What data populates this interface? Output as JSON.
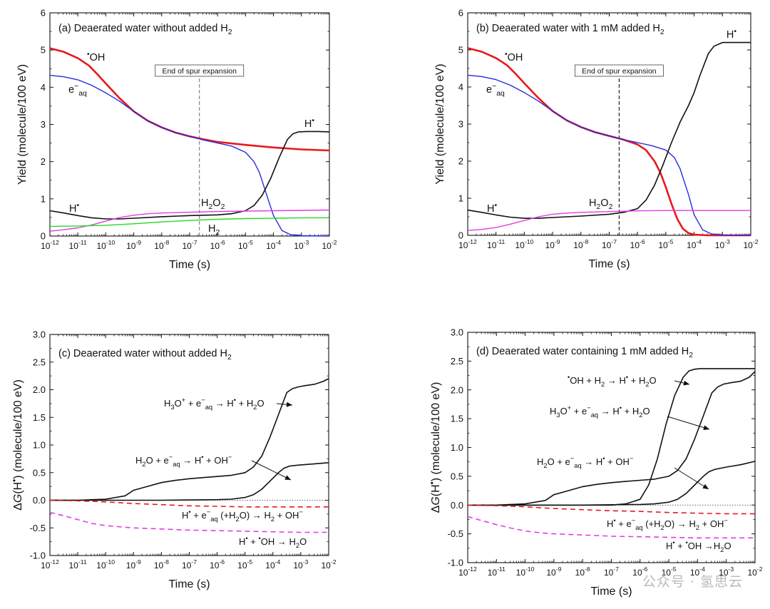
{
  "watermark": "公众号 · 氢思云",
  "colors": {
    "OH": "#e8191a",
    "eaq": "#2a2ae0",
    "H": "#111111",
    "H2O2": "#e23ce2",
    "H2": "#22dd22"
  },
  "chart_data": [
    {
      "id": "a",
      "type": "line",
      "title": "(a)  Deaerated water without added H₂",
      "xlabel": "Time (s)",
      "ylabel": "Yield (molecule/100 eV)",
      "xscale": "log",
      "xlim": [
        -12,
        -2
      ],
      "ylim": [
        0,
        6
      ],
      "yticks": [
        "0",
        "1",
        "2",
        "3",
        "4",
        "5",
        "6"
      ],
      "annotation_box": "End of spur expansion",
      "vline_x": -6.65,
      "series": [
        {
          "name": "•OH",
          "label_text": "OH",
          "color": "OH",
          "x": [
            -12,
            -11.5,
            -11,
            -10.6,
            -10.3,
            -10,
            -9.5,
            -9,
            -8.5,
            -8,
            -7.5,
            -7,
            -6.5,
            -6,
            -5,
            -4,
            -3,
            -2
          ],
          "y": [
            5.05,
            4.95,
            4.78,
            4.58,
            4.35,
            4.1,
            3.7,
            3.35,
            3.1,
            2.92,
            2.78,
            2.68,
            2.6,
            2.53,
            2.45,
            2.38,
            2.33,
            2.3
          ]
        },
        {
          "name": "e⁻aq",
          "label_text": "e",
          "color": "eaq",
          "x": [
            -12,
            -11.5,
            -11,
            -10.5,
            -10,
            -9.5,
            -9,
            -8.5,
            -8,
            -7.5,
            -7,
            -6.5,
            -6,
            -5.5,
            -5,
            -4.7,
            -4.5,
            -4.2,
            -4,
            -3.7,
            -3.4,
            -3,
            -2
          ],
          "y": [
            4.32,
            4.28,
            4.2,
            4.05,
            3.85,
            3.62,
            3.35,
            3.1,
            2.92,
            2.78,
            2.68,
            2.58,
            2.5,
            2.42,
            2.25,
            2.0,
            1.7,
            1.0,
            0.55,
            0.15,
            0.04,
            0.01,
            0.0
          ]
        },
        {
          "name": "H•",
          "label_text": "H",
          "color": "H",
          "x": [
            -12,
            -11.5,
            -11,
            -10.5,
            -10,
            -9.5,
            -9,
            -8,
            -7,
            -6,
            -5.5,
            -5,
            -4.7,
            -4.4,
            -4.1,
            -3.8,
            -3.5,
            -3.3,
            -3.1,
            -2.8,
            -2.4,
            -2
          ],
          "y": [
            0.68,
            0.62,
            0.55,
            0.49,
            0.46,
            0.46,
            0.48,
            0.52,
            0.55,
            0.57,
            0.6,
            0.68,
            0.82,
            1.1,
            1.55,
            2.1,
            2.6,
            2.75,
            2.8,
            2.81,
            2.81,
            2.8
          ]
        },
        {
          "name": "H₂O₂",
          "label_text": "H₂O₂",
          "color": "H2O2",
          "x": [
            -12,
            -11.5,
            -11,
            -10.5,
            -10,
            -9.5,
            -9,
            -8.5,
            -8,
            -7,
            -6,
            -5,
            -4,
            -3,
            -2
          ],
          "y": [
            0.13,
            0.17,
            0.22,
            0.3,
            0.4,
            0.5,
            0.56,
            0.6,
            0.62,
            0.64,
            0.66,
            0.67,
            0.68,
            0.69,
            0.7
          ]
        },
        {
          "name": "H₂",
          "label_text": "H₂",
          "color": "H2",
          "x": [
            -12,
            -11,
            -10,
            -9,
            -8,
            -7,
            -6,
            -5,
            -4,
            -3,
            -2
          ],
          "y": [
            0.26,
            0.27,
            0.29,
            0.33,
            0.38,
            0.42,
            0.45,
            0.47,
            0.48,
            0.49,
            0.49
          ]
        }
      ]
    },
    {
      "id": "b",
      "type": "line",
      "title": "(b)  Deaerated water with 1 mM added H₂",
      "xlabel": "Time (s)",
      "ylabel": "Yield (molecule/100 eV)",
      "xscale": "log",
      "xlim": [
        -12,
        -2
      ],
      "ylim": [
        0,
        6
      ],
      "yticks": [
        "0",
        "1",
        "2",
        "3",
        "4",
        "5",
        "6"
      ],
      "annotation_box": "End of spur expansion",
      "vline_x": -6.65,
      "series": [
        {
          "name": "•OH",
          "label_text": "OH",
          "color": "OH",
          "x": [
            -12,
            -11.5,
            -11,
            -10.6,
            -10.3,
            -10,
            -9.5,
            -9,
            -8.5,
            -8,
            -7.5,
            -7,
            -6.5,
            -6,
            -5.7,
            -5.4,
            -5.2,
            -5,
            -4.8,
            -4.6,
            -4.4,
            -4.2,
            -4,
            -3.5,
            -2
          ],
          "y": [
            5.05,
            4.95,
            4.78,
            4.58,
            4.35,
            4.1,
            3.7,
            3.35,
            3.1,
            2.92,
            2.78,
            2.68,
            2.58,
            2.45,
            2.3,
            2.0,
            1.7,
            1.3,
            0.85,
            0.45,
            0.18,
            0.06,
            0.02,
            0.0,
            0.0
          ]
        },
        {
          "name": "e⁻aq",
          "label_text": "e",
          "color": "eaq",
          "x": [
            -12,
            -11.5,
            -11,
            -10.5,
            -10,
            -9.5,
            -9,
            -8.5,
            -8,
            -7.5,
            -7,
            -6.5,
            -6,
            -5.5,
            -5,
            -4.7,
            -4.5,
            -4.2,
            -4,
            -3.7,
            -3.4,
            -3,
            -2
          ],
          "y": [
            4.32,
            4.28,
            4.2,
            4.05,
            3.85,
            3.62,
            3.35,
            3.1,
            2.92,
            2.78,
            2.68,
            2.58,
            2.5,
            2.42,
            2.3,
            2.1,
            1.8,
            1.1,
            0.55,
            0.15,
            0.04,
            0.01,
            0.0
          ]
        },
        {
          "name": "H•",
          "label_text": "H",
          "color": "H",
          "x": [
            -12,
            -11.5,
            -11,
            -10.5,
            -10,
            -9.5,
            -9,
            -8,
            -7,
            -6.5,
            -6,
            -5.7,
            -5.4,
            -5.1,
            -4.8,
            -4.5,
            -4.2,
            -4,
            -3.8,
            -3.5,
            -3.3,
            -3,
            -2.5,
            -2
          ],
          "y": [
            0.68,
            0.62,
            0.55,
            0.49,
            0.46,
            0.46,
            0.48,
            0.52,
            0.57,
            0.62,
            0.72,
            0.95,
            1.35,
            1.9,
            2.5,
            3.05,
            3.5,
            3.85,
            4.3,
            4.9,
            5.1,
            5.2,
            5.2,
            5.2
          ]
        },
        {
          "name": "H₂O₂",
          "label_text": "H₂O₂",
          "color": "H2O2",
          "x": [
            -12,
            -11.5,
            -11,
            -10.5,
            -10,
            -9.5,
            -9,
            -8.5,
            -8,
            -7,
            -6,
            -5,
            -4,
            -3,
            -2
          ],
          "y": [
            0.13,
            0.16,
            0.21,
            0.3,
            0.4,
            0.5,
            0.57,
            0.6,
            0.62,
            0.64,
            0.66,
            0.67,
            0.67,
            0.67,
            0.67
          ]
        }
      ]
    },
    {
      "id": "c",
      "type": "line",
      "title": "(c)  Deaerated water without added H₂",
      "xlabel": "Time (s)",
      "ylabel": "ΔG(H•) (molecule/100 eV)",
      "xscale": "log",
      "xlim": [
        -12,
        -2
      ],
      "ylim": [
        -1.0,
        3.0
      ],
      "yticks": [
        "-1.0",
        "-0.5",
        "0.0",
        "0.5",
        "1.0",
        "1.5",
        "2.0",
        "2.5",
        "3.0"
      ],
      "reactions": [
        {
          "text": "H₃O⁺ + e⁻aq → H• + H₂O",
          "reactant": "H₃O",
          "sup": "+",
          "e_sub": "aq",
          "product": "H• + H₂O"
        },
        {
          "text": "H₂O + e⁻aq → H• + OH⁻",
          "reactant": "H₂O",
          "sup": "",
          "e_sub": "aq",
          "product": "H• + OH⁻"
        },
        {
          "text": "H• + e⁻aq (+H₂O) → H₂ + OH⁻"
        },
        {
          "text": "H• + •OH → H₂O"
        }
      ],
      "series": [
        {
          "name": "H₃O⁺ + e⁻aq → H• + H₂O",
          "color": "H",
          "dash": false,
          "x": [
            -12,
            -11,
            -10,
            -9.3,
            -9,
            -8.5,
            -8,
            -7.5,
            -7,
            -6.5,
            -6,
            -5.5,
            -5,
            -4.7,
            -4.4,
            -4.1,
            -3.8,
            -3.5,
            -3.3,
            -3.1,
            -2.9,
            -2.5,
            -2.2,
            -2
          ],
          "y": [
            0,
            0,
            0.02,
            0.08,
            0.18,
            0.25,
            0.32,
            0.36,
            0.39,
            0.41,
            0.43,
            0.45,
            0.5,
            0.6,
            0.8,
            1.15,
            1.55,
            1.95,
            2.02,
            2.05,
            2.07,
            2.1,
            2.15,
            2.2
          ]
        },
        {
          "name": "H₂O + e⁻aq → H• + OH⁻",
          "color": "H",
          "dash": false,
          "x": [
            -12,
            -8,
            -6,
            -5.5,
            -5,
            -4.7,
            -4.4,
            -4.1,
            -3.8,
            -3.6,
            -3.4,
            -3.2,
            -3,
            -2.5,
            -2
          ],
          "y": [
            0,
            0,
            0.01,
            0.02,
            0.05,
            0.1,
            0.2,
            0.35,
            0.5,
            0.58,
            0.62,
            0.63,
            0.64,
            0.66,
            0.68
          ]
        },
        {
          "name": "H• + e⁻aq (+H₂O) → H₂ + OH⁻",
          "color": "OH",
          "dash": true,
          "x": [
            -12,
            -11,
            -10,
            -9,
            -8,
            -7,
            -6,
            -5,
            -4,
            -3,
            -2
          ],
          "y": [
            0,
            -0.01,
            -0.03,
            -0.06,
            -0.08,
            -0.1,
            -0.11,
            -0.12,
            -0.12,
            -0.12,
            -0.12
          ]
        },
        {
          "name": "H• + •OH → H₂O",
          "color": "H2O2",
          "dash": true,
          "x": [
            -12,
            -11.5,
            -11,
            -10.5,
            -10,
            -9.5,
            -9,
            -8,
            -7,
            -6,
            -5,
            -4,
            -3,
            -2
          ],
          "y": [
            -0.22,
            -0.28,
            -0.35,
            -0.42,
            -0.46,
            -0.48,
            -0.5,
            -0.52,
            -0.54,
            -0.55,
            -0.56,
            -0.57,
            -0.58,
            -0.58
          ]
        }
      ]
    },
    {
      "id": "d",
      "type": "line",
      "title": "(d)  Deaerated water containing 1 mM added H₂",
      "xlabel": "Time (s)",
      "ylabel": "ΔG(H•) (molecule/100 eV)",
      "xscale": "log",
      "xlim": [
        -12,
        -2
      ],
      "ylim": [
        -1.0,
        3.0
      ],
      "yticks": [
        "-1.0",
        "-0.5",
        "0.0",
        "0.5",
        "1.0",
        "1.5",
        "2.0",
        "2.5",
        "3.0"
      ],
      "reactions": [
        {
          "text": "•OH + H₂ → H• + H₂O"
        },
        {
          "text": "H₃O⁺ + e⁻aq → H• + H₂O"
        },
        {
          "text": "H₂O + e⁻aq → H• + OH⁻"
        },
        {
          "text": "H• + e⁻aq (+H₂O) → H₂ + OH⁻"
        },
        {
          "text": "H• + •OH →H₂O"
        }
      ],
      "series": [
        {
          "name": "•OH + H₂ → H• + H₂O",
          "color": "H",
          "dash": false,
          "x": [
            -12,
            -7,
            -6.5,
            -6,
            -5.7,
            -5.4,
            -5.1,
            -4.8,
            -4.5,
            -4.3,
            -4.1,
            -3.9,
            -3.5,
            -3,
            -2
          ],
          "y": [
            0,
            0,
            0.02,
            0.1,
            0.35,
            0.8,
            1.4,
            1.9,
            2.22,
            2.33,
            2.36,
            2.37,
            2.37,
            2.37,
            2.37
          ]
        },
        {
          "name": "H₃O⁺ + e⁻aq → H• + H₂O",
          "color": "H",
          "dash": false,
          "x": [
            -12,
            -11,
            -10,
            -9.3,
            -9,
            -8.5,
            -8,
            -7.5,
            -7,
            -6.5,
            -6,
            -5.5,
            -5,
            -4.7,
            -4.4,
            -4.1,
            -3.8,
            -3.5,
            -3.3,
            -3.1,
            -2.9,
            -2.5,
            -2.2,
            -2
          ],
          "y": [
            0,
            0,
            0.02,
            0.08,
            0.18,
            0.25,
            0.32,
            0.36,
            0.39,
            0.41,
            0.43,
            0.45,
            0.5,
            0.6,
            0.8,
            1.15,
            1.55,
            1.95,
            2.05,
            2.1,
            2.12,
            2.15,
            2.22,
            2.32
          ]
        },
        {
          "name": "H₂O + e⁻aq → H• + OH⁻",
          "color": "H",
          "dash": false,
          "x": [
            -12,
            -8,
            -6,
            -5.5,
            -5,
            -4.7,
            -4.4,
            -4.1,
            -3.8,
            -3.6,
            -3.4,
            -3.2,
            -3,
            -2.5,
            -2
          ],
          "y": [
            0,
            0,
            0.01,
            0.02,
            0.05,
            0.1,
            0.2,
            0.35,
            0.5,
            0.58,
            0.62,
            0.64,
            0.66,
            0.7,
            0.76
          ]
        },
        {
          "name": "H• + e⁻aq (+H₂O) → H₂ + OH⁻",
          "color": "OH",
          "dash": true,
          "x": [
            -12,
            -11,
            -10,
            -9,
            -8,
            -7,
            -6,
            -5,
            -4,
            -3,
            -2
          ],
          "y": [
            0,
            -0.01,
            -0.03,
            -0.06,
            -0.08,
            -0.1,
            -0.11,
            -0.13,
            -0.14,
            -0.15,
            -0.15
          ]
        },
        {
          "name": "H• + •OH →H₂O",
          "color": "H2O2",
          "dash": true,
          "x": [
            -12,
            -11.5,
            -11,
            -10.5,
            -10,
            -9.5,
            -9,
            -8,
            -7,
            -6,
            -5,
            -4,
            -3,
            -2
          ],
          "y": [
            -0.2,
            -0.27,
            -0.34,
            -0.4,
            -0.45,
            -0.48,
            -0.5,
            -0.52,
            -0.54,
            -0.55,
            -0.56,
            -0.57,
            -0.57,
            -0.57
          ]
        }
      ]
    }
  ]
}
